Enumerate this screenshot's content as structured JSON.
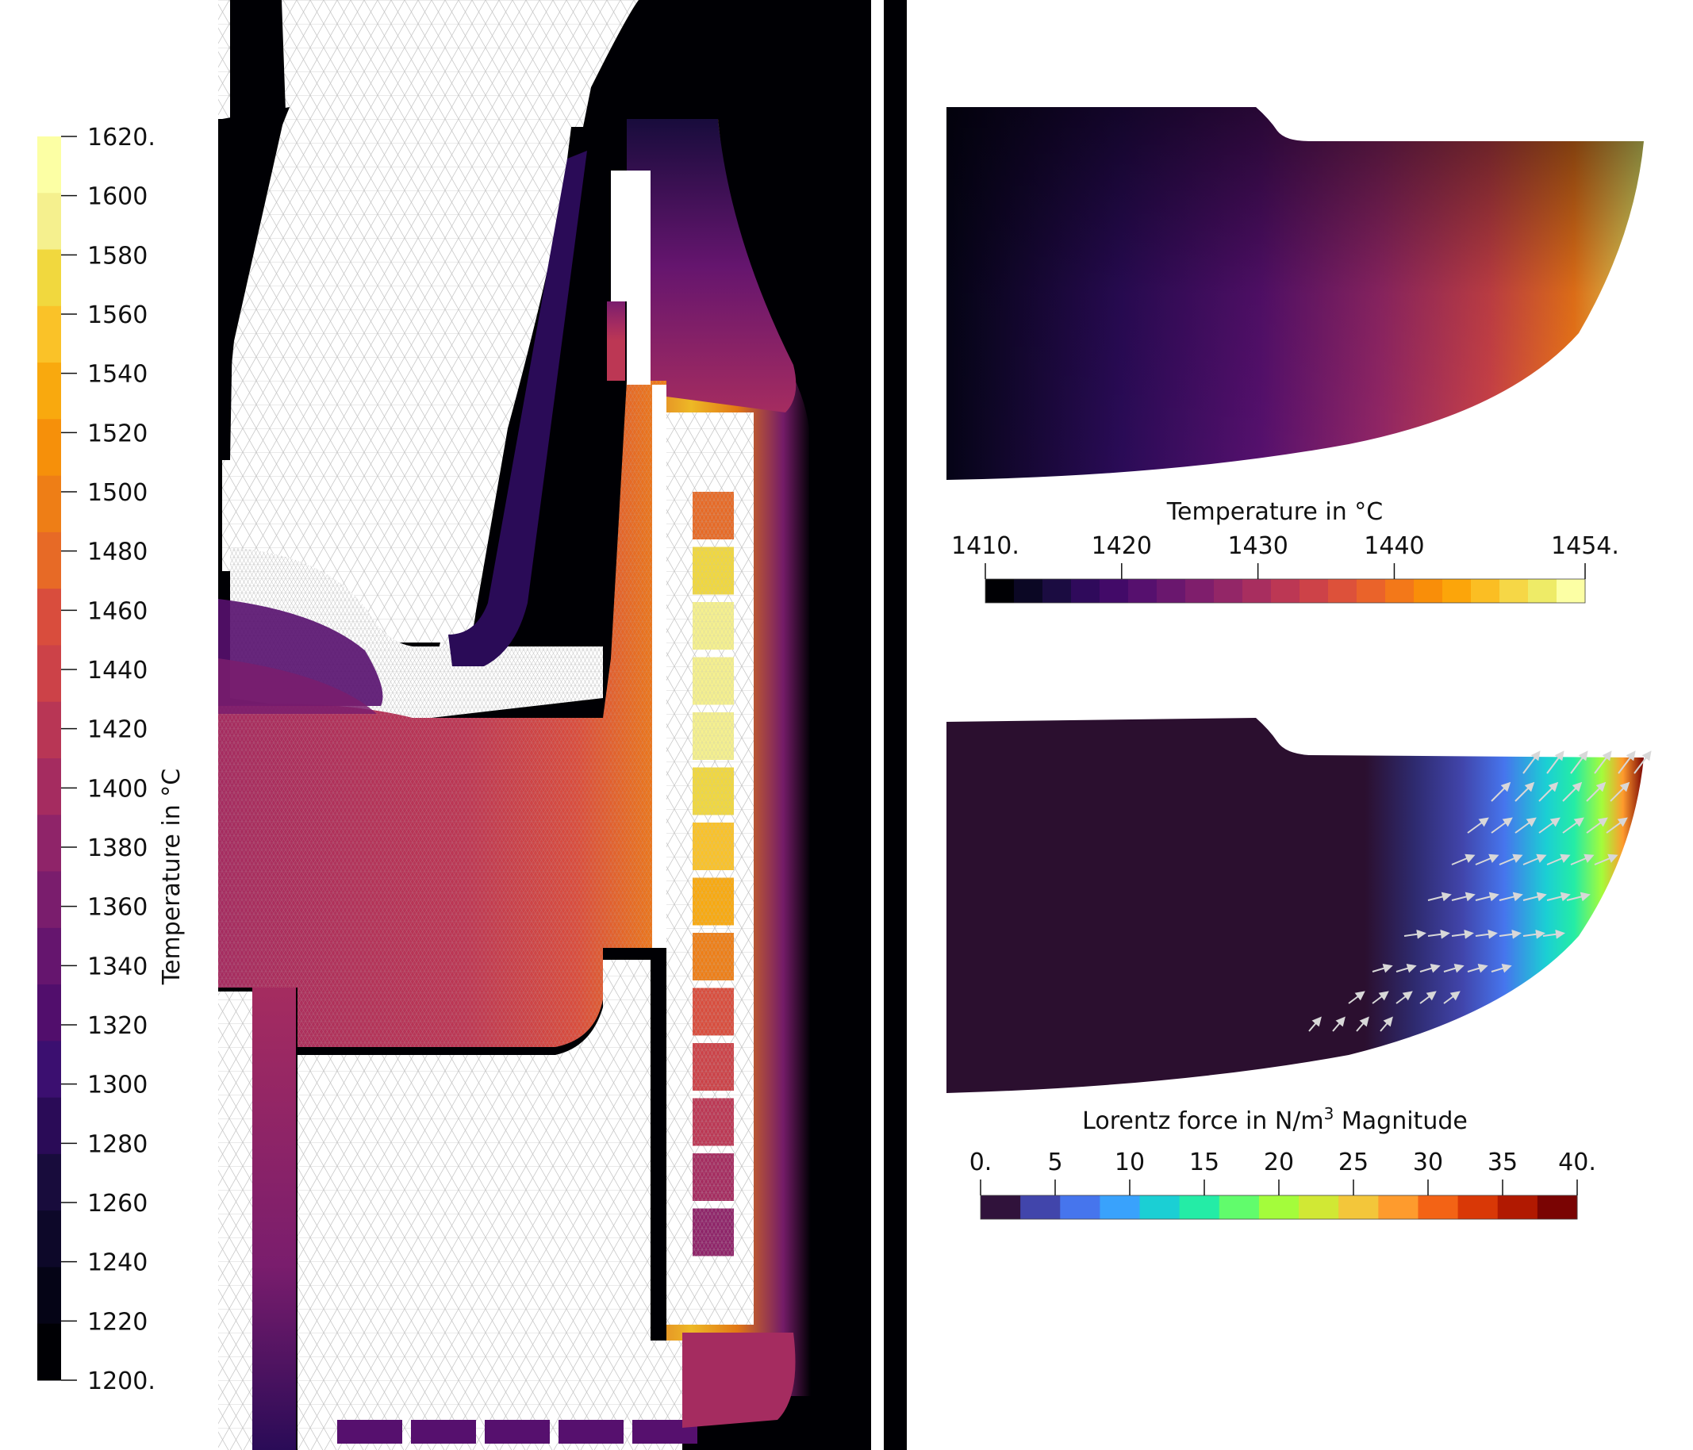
{
  "left_colorbar": {
    "title": "Temperature in °C",
    "tick_labels": [
      "1620.",
      "1600",
      "1580",
      "1560",
      "1540",
      "1520",
      "1500",
      "1480",
      "1460",
      "1440",
      "1420",
      "1400",
      "1380",
      "1360",
      "1340",
      "1320",
      "1300",
      "1280",
      "1260",
      "1240",
      "1220",
      "1200."
    ],
    "range": [
      1200,
      1620
    ],
    "colors_top_to_bottom": [
      "#fcffa4",
      "#f5f08e",
      "#f1d83e",
      "#fac228",
      "#f9a90e",
      "#f6900a",
      "#ee7e16",
      "#e76a26",
      "#d94d3d",
      "#cc4248",
      "#b83655",
      "#a52c60",
      "#8f2469",
      "#7a1d6d",
      "#65156e",
      "#510e6c",
      "#3b0f70",
      "#2a0b57",
      "#180c3c",
      "#0d0829",
      "#050416",
      "#000004"
    ]
  },
  "top_right_colorbar": {
    "title": "Temperature in °C",
    "tick_labels": [
      "1410.",
      "1420",
      "1430",
      "1440",
      "1454."
    ],
    "range": [
      1410,
      1454
    ],
    "colors": [
      "#000004",
      "#0b0724",
      "#1b0c41",
      "#2f0a5b",
      "#420a68",
      "#56106e",
      "#6a176e",
      "#7f1e6c",
      "#932667",
      "#a82e5f",
      "#bc3754",
      "#cd4248",
      "#dd513a",
      "#ea632a",
      "#f37819",
      "#f98e09",
      "#fca50a",
      "#fbbe23",
      "#f6d746",
      "#eeeb67",
      "#fcffa4"
    ]
  },
  "bottom_right_colorbar": {
    "title": "Lorentz force in N/m",
    "title_superscript": "3",
    "title_suffix": " Magnitude",
    "tick_labels": [
      "0.",
      "5",
      "10",
      "15",
      "20",
      "25",
      "30",
      "35",
      "40."
    ],
    "range": [
      0,
      40
    ],
    "colors": [
      "#30123b",
      "#4145ab",
      "#4675ed",
      "#39a2fc",
      "#1bcfd4",
      "#24eca6",
      "#61fc6c",
      "#a4fc3b",
      "#d1e834",
      "#f3c63a",
      "#fe9b2d",
      "#f36315",
      "#d93806",
      "#b11901",
      "#7a0403"
    ]
  },
  "colors": {
    "background": "#ffffff",
    "dark": "#000004",
    "mesh_line": "#c8c8c8"
  }
}
